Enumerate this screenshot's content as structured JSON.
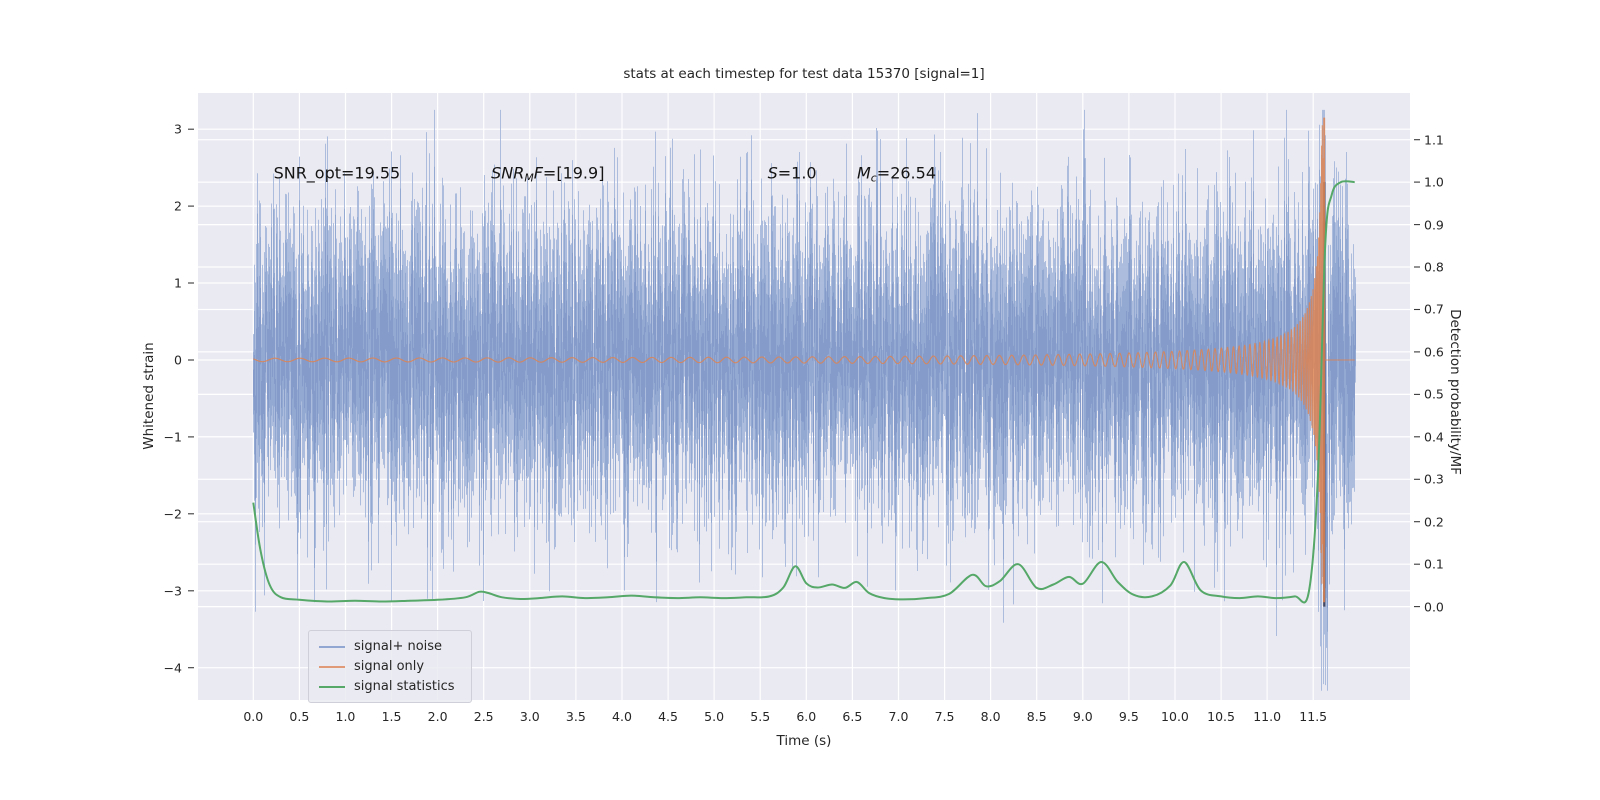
{
  "figure": {
    "background": "#ffffff",
    "plot_background": "#eaeaf2",
    "grid_color": "#ffffff",
    "tick_color": "#3a3a3a"
  },
  "chart_data": {
    "type": "line",
    "title": "stats at each timestep for test data 15370 [signal=1]",
    "xlabel": "Time (s)",
    "ylabel_left": "Whitened strain",
    "ylabel_right": "Detection probability/MF",
    "xlim": [
      -0.6,
      12.55
    ],
    "ylim_left": [
      -4.42,
      3.47
    ],
    "ylim_right": [
      -0.22,
      1.21
    ],
    "x_ticks": [
      0.0,
      0.5,
      1.0,
      1.5,
      2.0,
      2.5,
      3.0,
      3.5,
      4.0,
      4.5,
      5.0,
      5.5,
      6.0,
      6.5,
      7.0,
      7.5,
      8.0,
      8.5,
      9.0,
      9.5,
      10.0,
      10.5,
      11.0,
      11.5
    ],
    "x_tick_labels": [
      "0.0",
      "0.5",
      "1.0",
      "1.5",
      "2.0",
      "2.5",
      "3.0",
      "3.5",
      "4.0",
      "4.5",
      "5.0",
      "5.5",
      "6.0",
      "6.5",
      "7.0",
      "7.5",
      "8.0",
      "8.5",
      "9.0",
      "9.5",
      "10.0",
      "10.5",
      "11.0",
      "11.5"
    ],
    "y_ticks_left": [
      3,
      2,
      1,
      0,
      -1,
      -2,
      -3,
      -4
    ],
    "y_tick_labels_left": [
      "3",
      "2",
      "1",
      "0",
      "−1",
      "−2",
      "−3",
      "−4"
    ],
    "y_ticks_right": [
      1.1,
      1.0,
      0.9,
      0.8,
      0.7,
      0.6,
      0.5,
      0.4,
      0.3,
      0.2,
      0.1,
      0.0
    ],
    "y_tick_labels_right": [
      "1.1",
      "1.0",
      "0.9",
      "0.8",
      "0.7",
      "0.6",
      "0.5",
      "0.4",
      "0.3",
      "0.2",
      "0.1",
      "0.0"
    ],
    "annotations": [
      {
        "x": 0.22,
        "y": 2.42,
        "segments": [
          {
            "text": "SNR_opt=19.55",
            "style": "normal"
          }
        ]
      },
      {
        "x": 2.58,
        "y": 2.42,
        "segments": [
          {
            "text": "SNR",
            "style": "italic"
          },
          {
            "text": "M",
            "style": "sub"
          },
          {
            "text": "F",
            "style": "italic"
          },
          {
            "text": "=[19.9]",
            "style": "normal"
          }
        ]
      },
      {
        "x": 5.58,
        "y": 2.42,
        "segments": [
          {
            "text": "S",
            "style": "italic"
          },
          {
            "text": "=1.0",
            "style": "normal"
          }
        ]
      },
      {
        "x": 6.55,
        "y": 2.42,
        "segments": [
          {
            "text": "M",
            "style": "italic"
          },
          {
            "text": "c",
            "style": "sub"
          },
          {
            "text": "=26.54",
            "style": "normal"
          }
        ]
      }
    ],
    "series": [
      {
        "name": "signal+ noise",
        "kind": "noise_plus_signal",
        "axis": "left",
        "x_start": 0.0,
        "x_end": 11.95,
        "noise_std": 1.0,
        "seed": 42,
        "clip": [
          -4.3,
          3.25
        ],
        "merger_dip": {
          "t": 11.645,
          "depth": 3.4,
          "width": 0.007
        },
        "colors": {
          "outer": "#a9b9db",
          "mid": "#91a6d0",
          "core": "#8399c9"
        }
      },
      {
        "name": "signal only",
        "kind": "chirp",
        "axis": "left",
        "x_start": 0.0,
        "x_end": 11.95,
        "t_merger": 11.625,
        "peak_amplitude": 3.15,
        "amp": {
          "a0": 0.25,
          "tau_ref": 0.63,
          "exp": 0.83
        },
        "freq": {
          "f0": 6,
          "tau_ref": 5,
          "exp": 0.6
        },
        "color": "#dd8452"
      },
      {
        "name": "signal statistics",
        "kind": "line",
        "axis": "right",
        "color": "#55a868",
        "points_x": [
          0.0,
          0.08,
          0.18,
          0.3,
          0.5,
          0.8,
          1.1,
          1.4,
          1.7,
          2.0,
          2.3,
          2.45,
          2.55,
          2.7,
          2.9,
          3.1,
          3.35,
          3.6,
          3.85,
          4.1,
          4.35,
          4.6,
          4.85,
          5.1,
          5.35,
          5.6,
          5.75,
          5.88,
          6.0,
          6.12,
          6.28,
          6.42,
          6.55,
          6.68,
          6.85,
          7.05,
          7.3,
          7.55,
          7.8,
          7.95,
          8.1,
          8.3,
          8.5,
          8.68,
          8.85,
          9.0,
          9.2,
          9.38,
          9.55,
          9.75,
          9.95,
          10.1,
          10.28,
          10.5,
          10.7,
          10.9,
          11.1,
          11.3,
          11.45,
          11.55,
          11.63,
          11.7,
          11.8,
          11.95
        ],
        "points_y": [
          0.245,
          0.13,
          0.05,
          0.022,
          0.016,
          0.012,
          0.014,
          0.012,
          0.014,
          0.016,
          0.022,
          0.035,
          0.032,
          0.022,
          0.018,
          0.02,
          0.024,
          0.02,
          0.022,
          0.026,
          0.022,
          0.02,
          0.022,
          0.02,
          0.022,
          0.024,
          0.045,
          0.095,
          0.055,
          0.045,
          0.052,
          0.044,
          0.058,
          0.032,
          0.02,
          0.017,
          0.02,
          0.03,
          0.075,
          0.048,
          0.06,
          0.1,
          0.044,
          0.052,
          0.07,
          0.054,
          0.105,
          0.058,
          0.028,
          0.024,
          0.05,
          0.105,
          0.038,
          0.024,
          0.02,
          0.024,
          0.02,
          0.024,
          0.032,
          0.3,
          0.85,
          0.97,
          1.0,
          1.0
        ]
      }
    ],
    "marker_line": {
      "x": 11.62,
      "y_bottom": 0.0,
      "y_top": 1.0,
      "axis": "right",
      "color": "#23233a"
    },
    "legend": {
      "position": "lower left",
      "items": [
        {
          "label": "signal+ noise",
          "color": "#92a7d1"
        },
        {
          "label": "signal only",
          "color": "#e09a78"
        },
        {
          "label": "signal statistics",
          "color": "#55a868"
        }
      ]
    }
  }
}
